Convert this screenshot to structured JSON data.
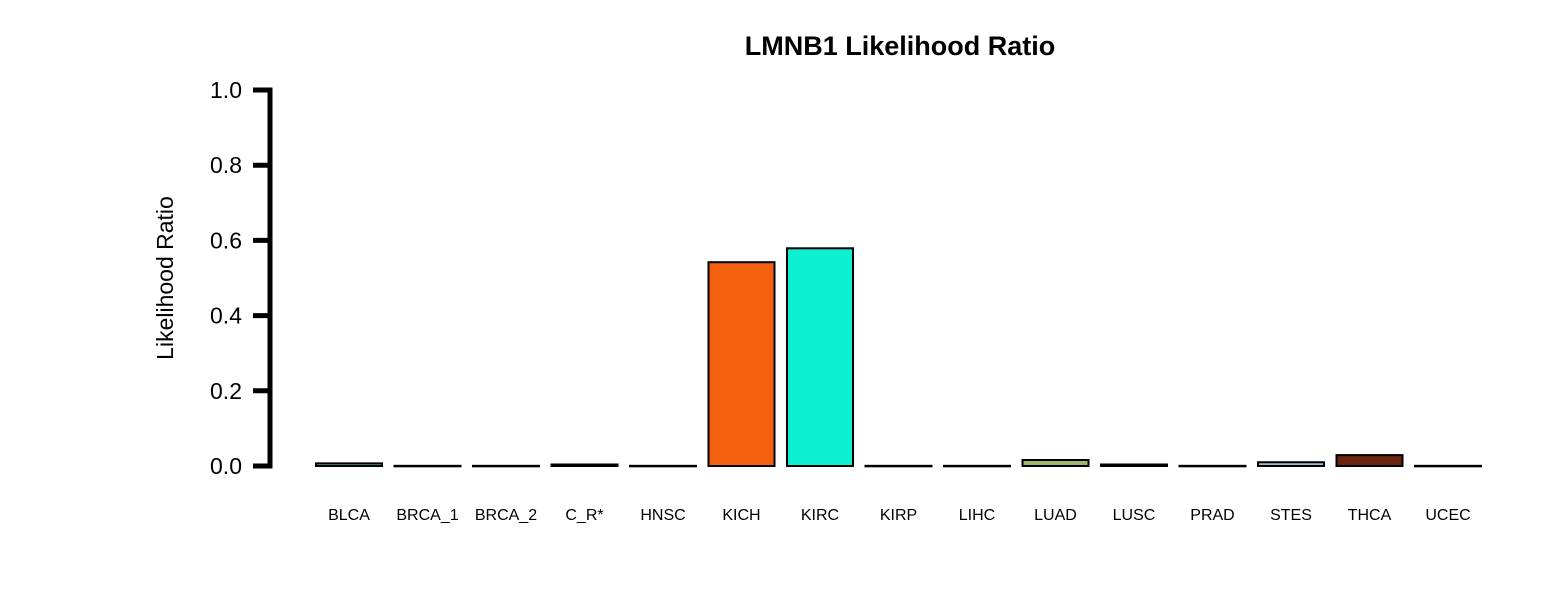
{
  "chart_data": {
    "type": "bar",
    "title": "LMNB1 Likelihood Ratio",
    "xlabel": "",
    "ylabel": "Likelihood Ratio",
    "ylim": [
      0,
      1.0
    ],
    "yticks": [
      "0.0",
      "0.2",
      "0.4",
      "0.6",
      "0.8",
      "1.0"
    ],
    "grid": false,
    "legend": "none",
    "categories": [
      "BLCA",
      "BRCA_1",
      "BRCA_2",
      "C_R*",
      "HNSC",
      "KICH",
      "KIRC",
      "KIRP",
      "LIHC",
      "LUAD",
      "LUSC",
      "PRAD",
      "STES",
      "THCA",
      "UCEC"
    ],
    "values": [
      0.007,
      0.0005,
      0.0005,
      0.004,
      0.0005,
      0.542,
      0.579,
      0.0005,
      0.0005,
      0.016,
      0.004,
      0.0005,
      0.01,
      0.029,
      0.0005
    ],
    "colors": [
      "#3fb8a6",
      "#1f6fb4",
      "#7a1f7a",
      "#6b5a2a",
      "#f7c8cf",
      "#f25f0f",
      "#0ff0d2",
      "#a01050",
      "#cfd6e6",
      "#9bb864",
      "#1a3a8a",
      "#7a4fa0",
      "#9fbfd8",
      "#6a2410",
      "#f0e0f0"
    ]
  }
}
